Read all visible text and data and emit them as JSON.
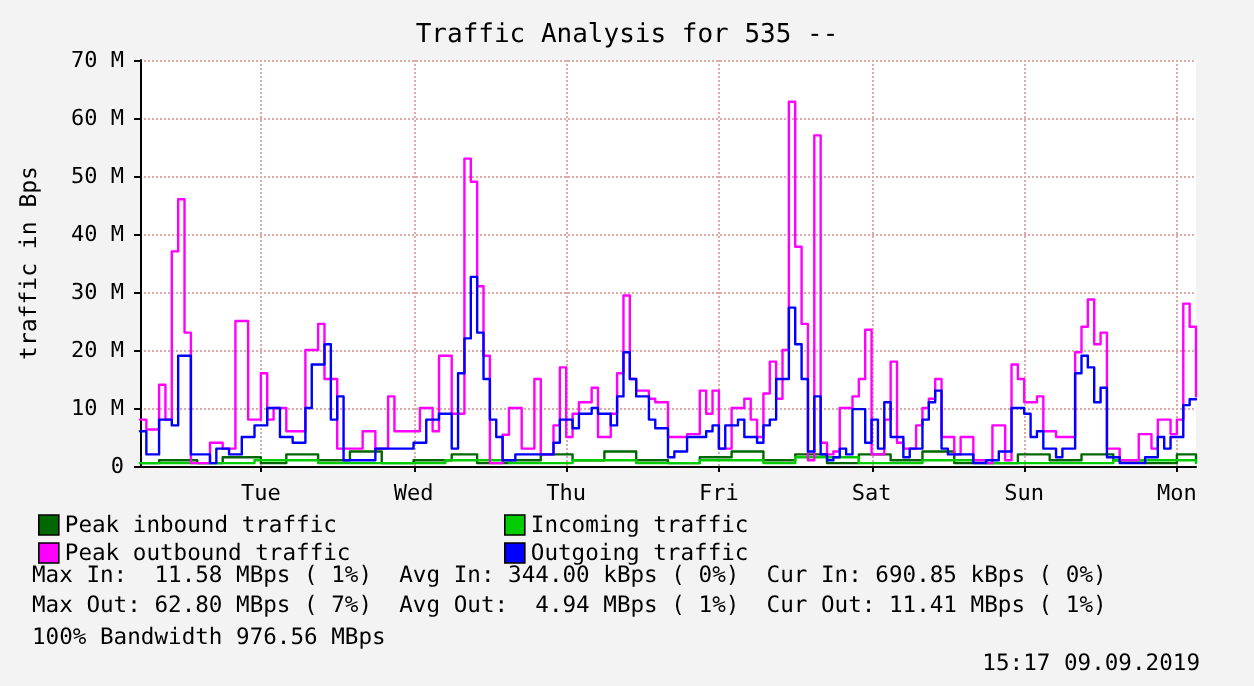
{
  "chart_data": {
    "type": "step",
    "title": "Traffic Analysis for 535 --",
    "ylabel": "traffic in Bps",
    "categories": [
      null,
      null,
      null,
      null,
      null,
      null,
      null,
      null,
      null,
      null,
      null,
      null,
      null,
      null,
      null,
      null,
      null,
      null,
      null,
      "Tue",
      null,
      null,
      null,
      null,
      null,
      null,
      null,
      null,
      null,
      null,
      null,
      null,
      null,
      null,
      null,
      null,
      null,
      null,
      null,
      null,
      null,
      null,
      null,
      "Wed",
      null,
      null,
      null,
      null,
      null,
      null,
      null,
      null,
      null,
      null,
      null,
      null,
      null,
      null,
      null,
      null,
      null,
      null,
      null,
      null,
      null,
      null,
      null,
      "Thu",
      null,
      null,
      null,
      null,
      null,
      null,
      null,
      null,
      null,
      null,
      null,
      null,
      null,
      null,
      null,
      null,
      null,
      null,
      null,
      null,
      null,
      null,
      null,
      "Fri",
      null,
      null,
      null,
      null,
      null,
      null,
      null,
      null,
      null,
      null,
      null,
      null,
      null,
      null,
      null,
      null,
      null,
      null,
      null,
      null,
      null,
      null,
      null,
      "Sat",
      null,
      null,
      null,
      null,
      null,
      null,
      null,
      null,
      null,
      null,
      null,
      null,
      null,
      null,
      null,
      null,
      null,
      null,
      null,
      null,
      null,
      null,
      null,
      "Sun",
      null,
      null,
      null,
      null,
      null,
      null,
      null,
      null,
      null,
      null,
      null,
      null,
      null,
      null,
      null,
      null,
      null,
      null,
      null,
      null,
      null,
      null,
      null,
      "Mon",
      null,
      null,
      null
    ],
    "ylim": [
      0,
      70
    ],
    "yticks": [
      0,
      {
        "value": 10,
        "label": "10 M"
      },
      {
        "value": 20,
        "label": "20 M"
      },
      {
        "value": 30,
        "label": "30 M"
      },
      {
        "value": 40,
        "label": "40 M"
      },
      {
        "value": 50,
        "label": "50 M"
      },
      {
        "value": 60,
        "label": "60 M"
      },
      {
        "value": 70,
        "label": "70 M"
      }
    ],
    "grid": true,
    "legend": "bottom",
    "marker": "none",
    "line_style": "solid",
    "series": [
      {
        "name": "Peak inbound traffic",
        "color": "#006600",
        "values": [
          0.5,
          0.5,
          0.5,
          1,
          1,
          1,
          1,
          1,
          1,
          0.5,
          0.5,
          0.5,
          0.5,
          1.5,
          1.5,
          1.5,
          1.5,
          1.5,
          1.5,
          0.5,
          0.5,
          0.5,
          0.5,
          2,
          2,
          2,
          2,
          2,
          1,
          1,
          1,
          1,
          1,
          2.5,
          2.5,
          2.5,
          2.5,
          2.5,
          0.5,
          0.5,
          0.5,
          0.5,
          0.5,
          1,
          1,
          1,
          1,
          1,
          1,
          2,
          2,
          2,
          2,
          0.5,
          0.5,
          0.5,
          0.5,
          0.5,
          1,
          1,
          1,
          1,
          1,
          2,
          2,
          2,
          2,
          2,
          1,
          1,
          1,
          1,
          1,
          2.5,
          2.5,
          2.5,
          2.5,
          2.5,
          1,
          1,
          1,
          1,
          1,
          0.5,
          0.5,
          0.5,
          0.5,
          0.5,
          1.5,
          1.5,
          1.5,
          1.5,
          1.5,
          2.5,
          2.5,
          2.5,
          2.5,
          2.5,
          1,
          1,
          1,
          1,
          1,
          2,
          2,
          2,
          2,
          2,
          0.5,
          0.5,
          0.5,
          0.5,
          0.5,
          2,
          2,
          2,
          2,
          2,
          1,
          1,
          1,
          1,
          1,
          2.5,
          2.5,
          2.5,
          2.5,
          2.5,
          0.5,
          0.5,
          0.5,
          0.5,
          0.5,
          0.5,
          0.5,
          0.5,
          0.5,
          0.5,
          2,
          2,
          2,
          2,
          2,
          1,
          1,
          1,
          1,
          1,
          2,
          2,
          2,
          2,
          2,
          1,
          1,
          1,
          1,
          1,
          0.5,
          0.5,
          0.5,
          0.5,
          0.5,
          2,
          2,
          2,
          1
        ]
      },
      {
        "name": "Incoming traffic",
        "color": "#00cc00",
        "values": [
          0.5,
          0.5,
          0.5,
          0.5,
          0.5,
          0.5,
          0.5,
          0.5,
          0.5,
          0.5,
          0.5,
          0.5,
          0.5,
          0.5,
          0.5,
          0.5,
          0.5,
          0.5,
          1,
          1,
          1,
          1,
          1,
          1,
          1,
          1,
          1,
          1,
          0.5,
          0.5,
          0.5,
          0.5,
          0.5,
          0.5,
          0.5,
          0.5,
          0.5,
          0.5,
          0.5,
          0.5,
          0.5,
          0.5,
          0.5,
          0.5,
          0.5,
          0.5,
          0.5,
          0.5,
          1,
          1,
          1,
          1,
          1,
          1,
          1,
          1,
          1,
          1,
          0.5,
          0.5,
          0.5,
          0.5,
          0.5,
          0.5,
          0.5,
          0.5,
          0.5,
          0.5,
          1,
          1,
          1,
          1,
          1,
          1,
          1,
          1,
          1,
          1,
          0.5,
          0.5,
          0.5,
          0.5,
          0.5,
          0.5,
          0.5,
          0.5,
          0.5,
          0.5,
          1,
          1,
          1,
          1,
          1,
          1,
          1,
          1,
          1,
          1,
          0.5,
          0.5,
          0.5,
          0.5,
          0.5,
          1.5,
          1.5,
          1.5,
          1.5,
          1.5,
          1.5,
          1.5,
          1.5,
          1.5,
          1.5,
          0.5,
          0.5,
          0.5,
          0.5,
          0.5,
          0.5,
          0.5,
          0.5,
          0.5,
          0.5,
          1,
          1,
          1,
          1,
          1,
          1,
          1,
          1,
          1,
          1,
          0.5,
          0.5,
          0.5,
          0.5,
          0.5,
          0.5,
          0.5,
          0.5,
          0.5,
          0.5,
          0.5,
          0.5,
          0.5,
          0.5,
          0.5,
          0.5,
          0.5,
          0.5,
          0.5,
          0.5,
          1,
          1,
          1,
          1,
          1,
          1,
          1,
          1,
          1,
          1,
          1,
          1,
          1,
          0.5
        ]
      },
      {
        "name": "Peak outbound traffic",
        "color": "#ff00ff",
        "values": [
          8,
          6.3,
          6.3,
          14,
          8,
          37,
          46,
          23,
          0.5,
          0.5,
          0.5,
          4,
          4,
          3,
          3,
          25,
          25,
          8,
          8,
          16,
          8,
          10,
          10,
          6,
          6,
          6,
          20,
          20,
          24.5,
          15,
          15,
          3,
          3,
          3,
          3,
          6,
          6,
          3,
          3,
          12,
          6,
          6,
          6,
          6,
          10,
          10,
          6,
          19,
          19,
          9,
          9,
          53,
          49,
          31,
          19,
          0.5,
          0.5,
          5.4,
          10,
          10,
          3,
          3,
          15,
          2,
          2,
          7,
          17,
          5,
          9,
          11,
          11,
          13.5,
          5,
          5,
          9,
          16,
          29.4,
          15,
          13,
          13,
          11.6,
          11,
          11,
          5,
          5,
          5,
          5.5,
          5.5,
          13,
          9,
          13,
          3,
          3,
          10,
          10,
          11.6,
          8,
          5,
          12.5,
          18,
          11.6,
          20,
          62.8,
          37.8,
          24.5,
          1,
          57,
          4,
          2,
          2.5,
          10,
          10,
          12,
          15,
          23.5,
          2,
          2,
          8,
          18,
          4,
          3,
          3,
          7,
          10,
          11.6,
          15,
          5,
          5,
          2,
          5,
          5,
          1,
          1,
          0.5,
          7,
          7,
          1,
          17.5,
          15,
          11,
          11,
          12,
          6,
          6,
          5,
          5,
          5,
          19.6,
          24,
          28.7,
          21,
          23,
          3,
          3,
          1,
          1,
          1,
          5.5,
          5.5,
          3,
          8,
          8,
          5.5,
          8,
          28,
          24,
          12
        ]
      },
      {
        "name": "Outgoing traffic",
        "color": "#0000ff",
        "values": [
          6,
          2,
          2,
          8,
          8,
          7,
          19,
          19,
          2,
          2,
          2,
          0.5,
          3,
          3,
          2,
          2,
          5,
          5,
          7,
          7,
          10,
          10,
          5,
          5,
          4,
          4,
          10,
          17.5,
          17.5,
          21,
          8,
          12,
          1,
          1,
          1,
          1,
          1,
          3,
          3,
          3,
          3,
          3,
          3,
          4,
          4,
          8,
          8,
          9,
          9,
          3,
          16,
          22,
          32.6,
          23,
          15,
          8,
          5,
          1,
          1,
          2,
          2,
          2,
          2,
          2,
          2,
          4,
          8,
          8,
          6.5,
          9,
          9,
          10,
          9,
          9,
          7,
          12,
          19.6,
          15,
          12,
          12,
          8,
          6.5,
          6.5,
          1.5,
          2.5,
          2.5,
          5,
          5,
          5,
          6,
          7,
          3,
          7,
          7,
          8,
          5,
          5,
          4,
          7,
          8,
          15,
          15,
          27.3,
          21,
          15,
          2.5,
          12,
          2,
          1,
          1.5,
          3,
          2,
          9.8,
          9.8,
          4,
          8,
          3,
          11,
          5,
          5,
          1.5,
          3,
          3,
          8,
          11,
          13,
          3,
          2,
          2,
          2,
          2,
          0.5,
          0.5,
          1,
          1,
          2.5,
          2.5,
          10,
          10,
          9,
          5,
          6,
          3,
          3,
          1.5,
          3,
          3,
          16,
          19,
          17,
          11,
          13.5,
          1.5,
          1.5,
          0.5,
          0.5,
          0.5,
          0.5,
          1.5,
          1.5,
          5,
          3,
          5,
          5,
          10.5,
          11.5,
          11.4
        ]
      }
    ],
    "annotations": [
      "Max In:  11.58 MBps ( 1%)  Avg In: 344.00 kBps ( 0%)  Cur In: 690.85 kBps ( 0%)",
      "Max Out: 62.80 MBps ( 7%)  Avg Out:  4.94 MBps ( 1%)  Cur Out: 11.41 MBps ( 1%)",
      "100% Bandwidth 976.56 MBps",
      "15:17 09.09.2019"
    ]
  }
}
